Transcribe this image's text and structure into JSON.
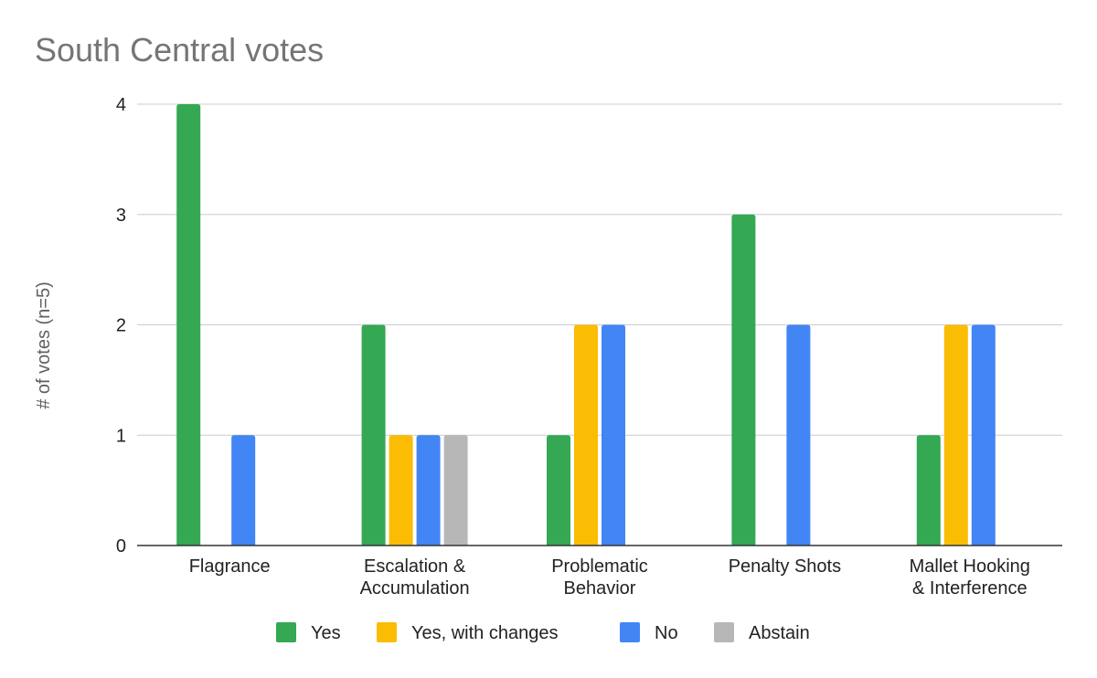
{
  "chart_data": {
    "type": "bar",
    "title": "South Central votes",
    "xlabel": "",
    "ylabel": "# of votes (n=5)",
    "ylim": [
      0,
      4
    ],
    "yticks": [
      0,
      1,
      2,
      3,
      4
    ],
    "grid": true,
    "legend_position": "bottom",
    "categories": [
      [
        "Flagrance"
      ],
      [
        "Escalation &",
        "Accumulation"
      ],
      [
        "Problematic",
        "Behavior"
      ],
      [
        "Penalty Shots"
      ],
      [
        "Mallet Hooking",
        "& Interference"
      ]
    ],
    "series": [
      {
        "name": "Yes",
        "color": "#34a853",
        "values": [
          4,
          2,
          1,
          3,
          1
        ]
      },
      {
        "name": "Yes, with changes",
        "color": "#fbbc04",
        "values": [
          0,
          1,
          2,
          0,
          2
        ]
      },
      {
        "name": "No",
        "color": "#4285f4",
        "values": [
          1,
          1,
          2,
          2,
          2
        ]
      },
      {
        "name": "Abstain",
        "color": "#b7b7b7",
        "values": [
          0,
          1,
          0,
          0,
          0
        ]
      }
    ]
  }
}
